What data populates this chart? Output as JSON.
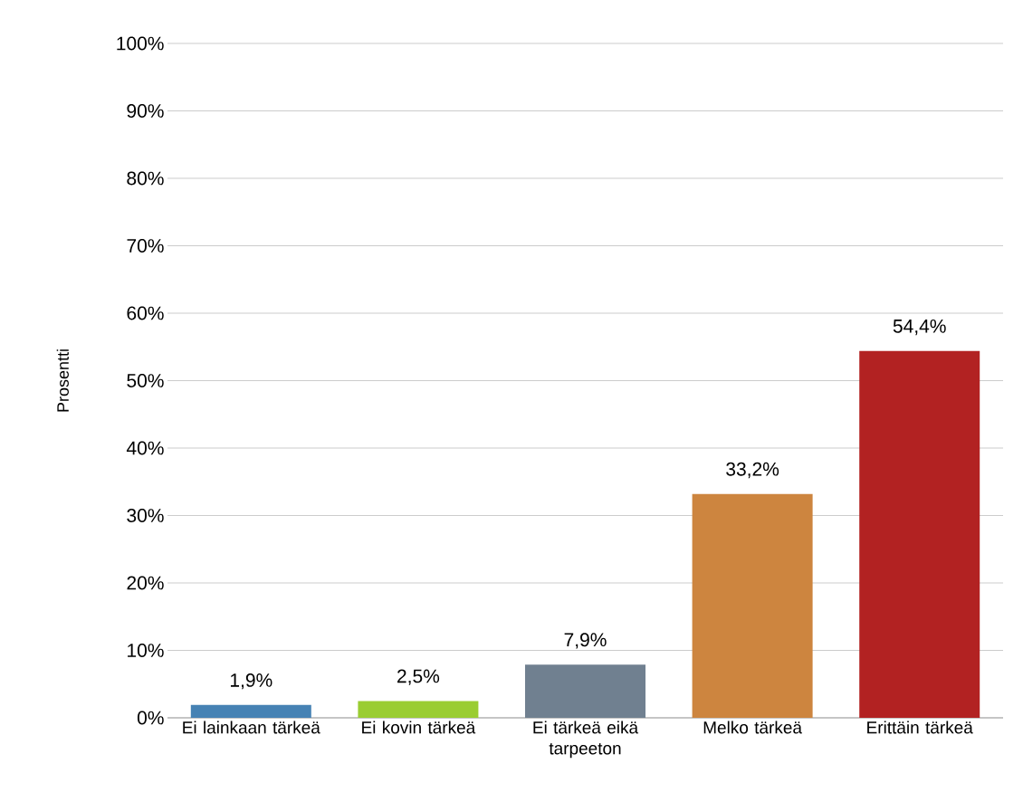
{
  "chart_data": {
    "type": "bar",
    "ylabel": "Prosentti",
    "categories": [
      "Ei lainkaan tärkeä",
      "Ei kovin tärkeä",
      "Ei tärkeä eikä tarpeeton",
      "Melko tärkeä",
      "Erittäin tärkeä"
    ],
    "values": [
      1.9,
      2.5,
      7.9,
      33.2,
      54.4
    ],
    "colors": [
      "#4682b4",
      "#9acd32",
      "#708090",
      "#cd853f",
      "#b22222"
    ],
    "value_labels": [
      "1,9%",
      "2,5%",
      "7,9%",
      "33,2%",
      "54,4%"
    ],
    "ylim": [
      0,
      100
    ],
    "yticks": [
      {
        "value": 0,
        "label": "0%"
      },
      {
        "value": 10,
        "label": "10%"
      },
      {
        "value": 20,
        "label": "20%"
      },
      {
        "value": 30,
        "label": "30%"
      },
      {
        "value": 40,
        "label": "40%"
      },
      {
        "value": 50,
        "label": "50%"
      },
      {
        "value": 60,
        "label": "60%"
      },
      {
        "value": 70,
        "label": "70%"
      },
      {
        "value": 80,
        "label": "80%"
      },
      {
        "value": 90,
        "label": "90%"
      },
      {
        "value": 100,
        "label": "100%"
      }
    ],
    "grid": "y"
  }
}
